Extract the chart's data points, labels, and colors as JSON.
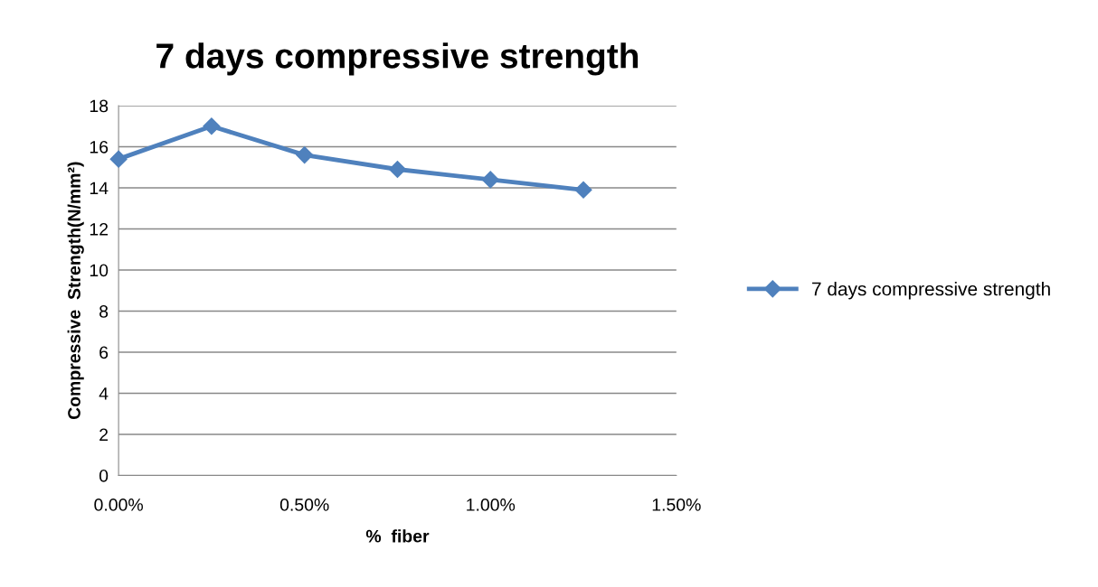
{
  "chart_data": {
    "type": "line",
    "title": "7 days compressive strength",
    "xlabel": "%  fiber",
    "ylabel": "Compressive  Strength(N/mm²)",
    "x": [
      0,
      0.25,
      0.5,
      0.75,
      1.0,
      1.25
    ],
    "series": [
      {
        "name": "7 days compressive strength",
        "color": "#4f81bd",
        "values": [
          15.4,
          17.0,
          15.6,
          14.9,
          14.4,
          13.9
        ]
      }
    ],
    "xlim": [
      0,
      1.5
    ],
    "xticks": [
      {
        "value": 0,
        "label": "0.00%"
      },
      {
        "value": 0.5,
        "label": "0.50%"
      },
      {
        "value": 1.0,
        "label": "1.00%"
      },
      {
        "value": 1.5,
        "label": "1.50%"
      }
    ],
    "ylim": [
      0,
      18
    ],
    "yticks": [
      0,
      2,
      4,
      6,
      8,
      10,
      12,
      14,
      16,
      18
    ],
    "grid": "y",
    "legend": "right",
    "marker": "diamond",
    "line_style": "solid"
  }
}
